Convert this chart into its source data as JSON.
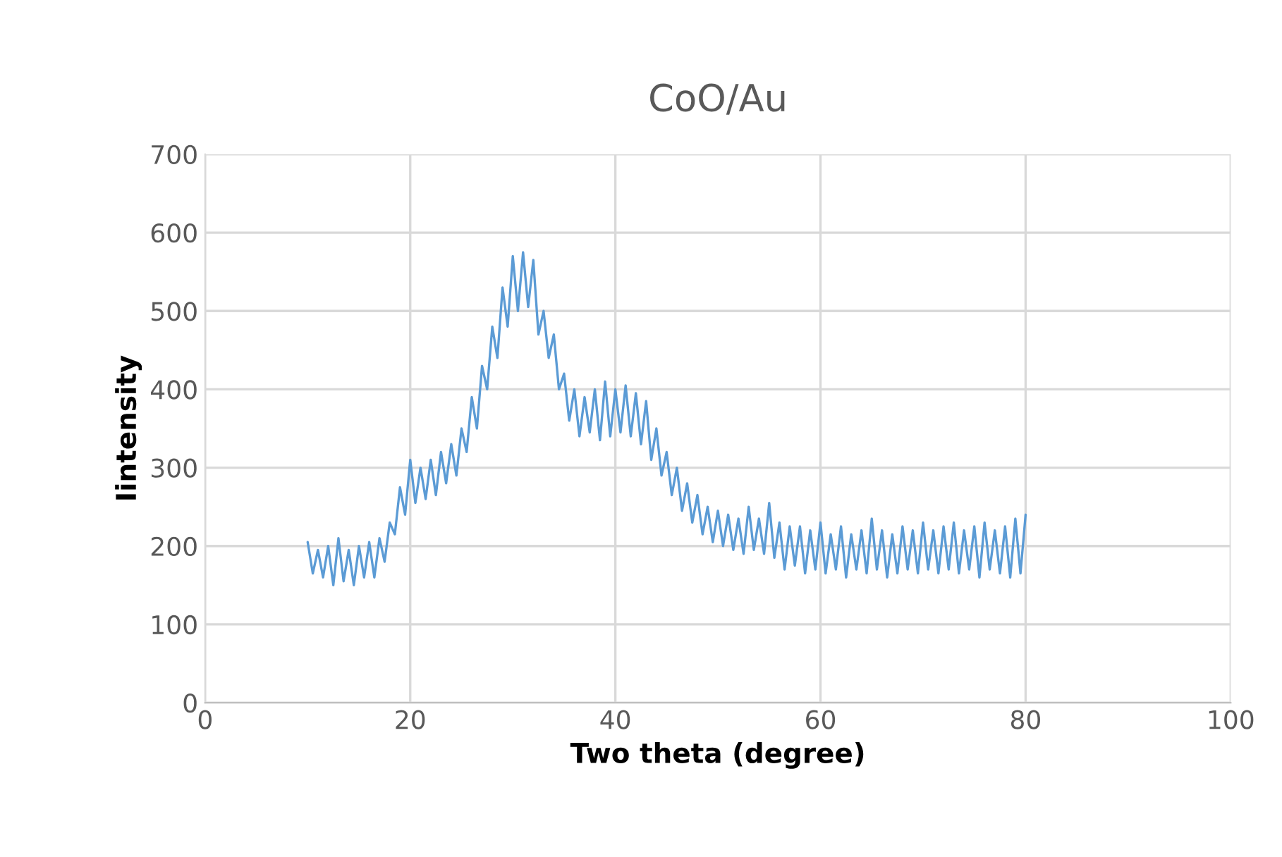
{
  "chart_data": {
    "type": "line",
    "title": "CoO/Au",
    "xlabel": "Two theta (degree)",
    "ylabel": "Iintensity",
    "xlim": [
      0,
      100
    ],
    "xticks": [
      0,
      20,
      40,
      60,
      80,
      100
    ],
    "ylim": [
      0,
      700
    ],
    "yticks": [
      0,
      100,
      200,
      300,
      400,
      500,
      600,
      700
    ],
    "grid": true,
    "legend": false,
    "marker": "none",
    "line_style": "solid",
    "series": [
      {
        "color": "#5b9bd5",
        "x": [
          10,
          10.5,
          11,
          11.5,
          12,
          12.5,
          13,
          13.5,
          14,
          14.5,
          15,
          15.5,
          16,
          16.5,
          17,
          17.5,
          18,
          18.5,
          19,
          19.5,
          20,
          20.5,
          21,
          21.5,
          22,
          22.5,
          23,
          23.5,
          24,
          24.5,
          25,
          25.5,
          26,
          26.5,
          27,
          27.5,
          28,
          28.5,
          29,
          29.5,
          30,
          30.5,
          31,
          31.5,
          32,
          32.5,
          33,
          33.5,
          34,
          34.5,
          35,
          35.5,
          36,
          36.5,
          37,
          37.5,
          38,
          38.5,
          39,
          39.5,
          40,
          40.5,
          41,
          41.5,
          42,
          42.5,
          43,
          43.5,
          44,
          44.5,
          45,
          45.5,
          46,
          46.5,
          47,
          47.5,
          48,
          48.5,
          49,
          49.5,
          50,
          50.5,
          51,
          51.5,
          52,
          52.5,
          53,
          53.5,
          54,
          54.5,
          55,
          55.5,
          56,
          56.5,
          57,
          57.5,
          58,
          58.5,
          59,
          59.5,
          60,
          60.5,
          61,
          61.5,
          62,
          62.5,
          63,
          63.5,
          64,
          64.5,
          65,
          65.5,
          66,
          66.5,
          67,
          67.5,
          68,
          68.5,
          69,
          69.5,
          70,
          70.5,
          71,
          71.5,
          72,
          72.5,
          73,
          73.5,
          74,
          74.5,
          75,
          75.5,
          76,
          76.5,
          77,
          77.5,
          78,
          78.5,
          79,
          79.5,
          80
        ],
        "values": [
          205,
          165,
          195,
          160,
          200,
          150,
          210,
          155,
          195,
          150,
          200,
          160,
          205,
          160,
          210,
          180,
          230,
          215,
          275,
          240,
          310,
          255,
          300,
          260,
          310,
          265,
          320,
          280,
          330,
          290,
          350,
          320,
          390,
          350,
          430,
          400,
          480,
          440,
          530,
          480,
          570,
          500,
          575,
          505,
          565,
          470,
          500,
          440,
          470,
          400,
          420,
          360,
          400,
          340,
          390,
          345,
          400,
          335,
          410,
          340,
          400,
          345,
          405,
          340,
          395,
          330,
          385,
          310,
          350,
          290,
          320,
          265,
          300,
          245,
          280,
          230,
          265,
          215,
          250,
          205,
          245,
          200,
          240,
          195,
          235,
          190,
          250,
          195,
          235,
          190,
          255,
          185,
          230,
          170,
          225,
          175,
          225,
          165,
          220,
          170,
          230,
          165,
          215,
          170,
          225,
          160,
          215,
          170,
          220,
          165,
          235,
          170,
          220,
          160,
          215,
          165,
          225,
          170,
          220,
          165,
          230,
          170,
          220,
          165,
          225,
          170,
          230,
          165,
          220,
          170,
          225,
          160,
          230,
          170,
          220,
          165,
          225,
          160,
          235,
          165,
          240
        ]
      }
    ]
  }
}
